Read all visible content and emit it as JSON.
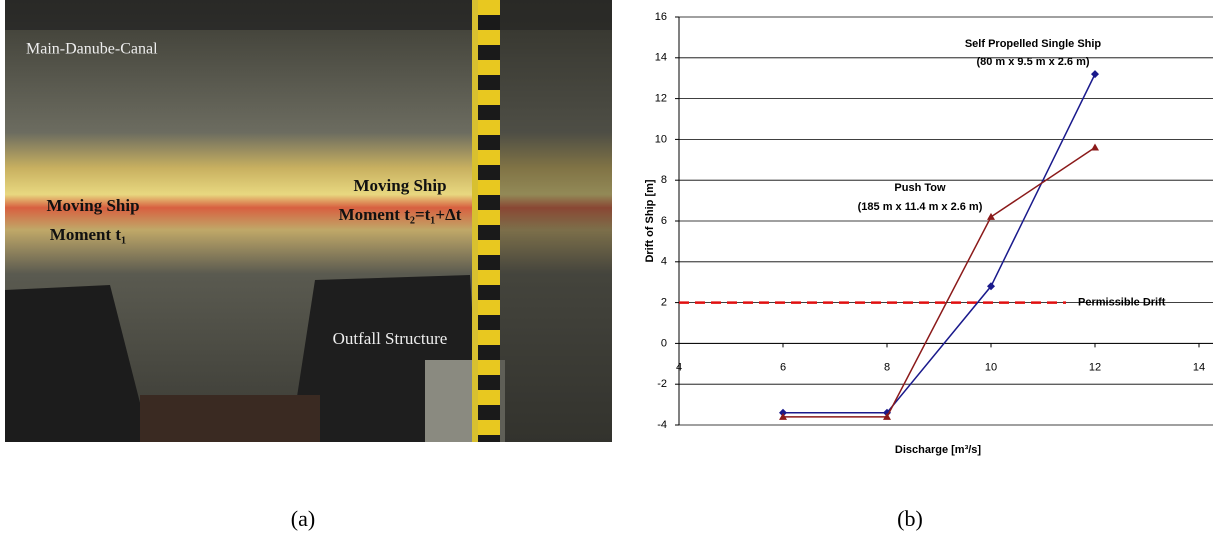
{
  "photo": {
    "labels": [
      "Main-Danube-Canal",
      "Moving Ship",
      "Moment t₁",
      "Moving Ship",
      "Moment t₂=t₁+Δt",
      "Outfall Structure"
    ]
  },
  "chart_data": {
    "type": "line",
    "x_label": "Discharge [m³/s]",
    "y_label": "Drift of Ship [m]",
    "x": [
      6,
      8,
      10,
      12
    ],
    "series": [
      {
        "name": "Self Propelled Single Ship",
        "dimensions": "(80 m x 9.5 m x 2.6 m)",
        "color": "#1a1a8c",
        "marker": "diamond",
        "values": [
          -3.4,
          -3.4,
          2.8,
          13.2
        ]
      },
      {
        "name": "Push Tow",
        "dimensions": "(185 m x 11.4 m x 2.6 m)",
        "color": "#8b1a1a",
        "marker": "triangle",
        "values": [
          -3.6,
          -3.6,
          6.2,
          9.6
        ]
      }
    ],
    "reference_line": {
      "value": 2,
      "label": "Permissible Drift",
      "color": "#e01010"
    },
    "xlim": [
      4,
      14
    ],
    "xticks": [
      4,
      6,
      8,
      10,
      12,
      14
    ],
    "ylim": [
      -4,
      16
    ],
    "yticks": [
      -4,
      -2,
      0,
      2,
      4,
      6,
      8,
      10,
      12,
      14,
      16
    ],
    "grid": true
  },
  "captions": [
    "(a)",
    "(b)"
  ]
}
